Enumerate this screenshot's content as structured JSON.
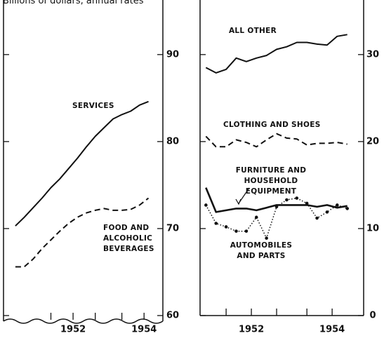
{
  "title": "Billions of dollars, annual rates",
  "chart_data": [
    {
      "type": "line",
      "x": [
        1950.375,
        1950.625,
        1950.875,
        1951.125,
        1951.375,
        1951.625,
        1951.875,
        1952.125,
        1952.375,
        1952.625,
        1952.875,
        1953.125,
        1953.375,
        1953.625,
        1953.875,
        1954.125
      ],
      "series": [
        {
          "name": "SERVICES",
          "color": "#111",
          "style": "solid",
          "values": [
            70.3,
            71.3,
            72.4,
            73.5,
            74.7,
            75.7,
            76.9,
            78.1,
            79.4,
            80.6,
            81.6,
            82.6,
            83.1,
            83.5,
            84.2,
            84.6
          ]
        },
        {
          "name": "FOOD AND ALCOHOLIC BEVERAGES",
          "color": "#111",
          "style": "dashed",
          "values": [
            65.6,
            65.6,
            66.5,
            67.7,
            68.7,
            69.7,
            70.6,
            71.3,
            71.8,
            72.1,
            72.3,
            72.1,
            72.1,
            72.2,
            72.7,
            73.5
          ]
        }
      ],
      "xlim": [
        1950.04,
        1954.53
      ],
      "xticks": [
        1952,
        1954
      ],
      "minor_xticks": [
        1951.375,
        1952.625,
        1953.375
      ],
      "ylim": [
        60,
        94.5
      ],
      "yticks": [
        60,
        70,
        80,
        90
      ]
    },
    {
      "type": "line",
      "x": [
        1950.875,
        1951.125,
        1951.375,
        1951.625,
        1951.875,
        1952.125,
        1952.375,
        1952.625,
        1952.875,
        1953.125,
        1953.375,
        1953.625,
        1953.875,
        1954.125,
        1954.375
      ],
      "series": [
        {
          "name": "ALL OTHER",
          "color": "#111",
          "style": "solid",
          "values": [
            28.5,
            27.9,
            28.3,
            29.6,
            29.2,
            29.6,
            29.9,
            30.6,
            30.9,
            31.4,
            31.4,
            31.2,
            31.1,
            32.1,
            32.3
          ]
        },
        {
          "name": "CLOTHING AND SHOES",
          "color": "#111",
          "style": "dashed",
          "values": [
            20.6,
            19.4,
            19.4,
            20.2,
            19.9,
            19.4,
            20.2,
            20.9,
            20.4,
            20.3,
            19.6,
            19.8,
            19.8,
            19.9,
            19.7
          ]
        },
        {
          "name": "FURNITURE AND HOUSEHOLD EQUIPMENT",
          "color": "#111",
          "style": "thick",
          "values": [
            14.7,
            11.9,
            12.1,
            12.3,
            12.3,
            12.1,
            12.4,
            12.7,
            12.7,
            12.7,
            12.7,
            12.5,
            12.7,
            12.4,
            12.6
          ]
        },
        {
          "name": "AUTOMOBILES AND PARTS",
          "color": "#111",
          "style": "dotted-markers",
          "values": [
            12.7,
            10.6,
            10.2,
            9.7,
            9.7,
            11.3,
            8.9,
            12.5,
            13.3,
            13.5,
            12.9,
            11.2,
            11.9,
            12.7,
            12.3
          ]
        }
      ],
      "xlim": [
        1950.73,
        1954.78
      ],
      "xticks": [
        1952,
        1954
      ],
      "minor_xticks": [
        1951.375,
        1952.625,
        1953.375
      ],
      "ylim": [
        0,
        34.5
      ],
      "yticks": [
        0,
        10,
        20,
        30
      ]
    }
  ]
}
